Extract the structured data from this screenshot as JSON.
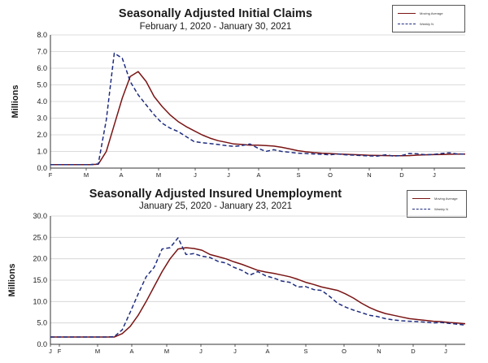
{
  "chart_data": [
    {
      "type": "line",
      "title": "Seasonally Adjusted Initial Claims",
      "subtitle": "February 1, 2020 - January 30, 2021",
      "xlabel": "",
      "ylabel": "Millions",
      "ylim": [
        0,
        8
      ],
      "yticks": [
        "0.0",
        "1.0",
        "2.0",
        "3.0",
        "4.0",
        "5.0",
        "6.0",
        "7.0",
        "8.0"
      ],
      "grid": "horizontal",
      "legend_position": "top-right",
      "x_tick_labels": [
        "F",
        "M",
        "A",
        "M",
        "J",
        "J",
        "A",
        "S",
        "O",
        "N",
        "D",
        "J"
      ],
      "x": [
        "2020-02-01",
        "2020-02-08",
        "2020-02-15",
        "2020-02-22",
        "2020-02-29",
        "2020-03-07",
        "2020-03-14",
        "2020-03-21",
        "2020-03-28",
        "2020-04-04",
        "2020-04-11",
        "2020-04-18",
        "2020-04-25",
        "2020-05-02",
        "2020-05-09",
        "2020-05-16",
        "2020-05-23",
        "2020-05-30",
        "2020-06-06",
        "2020-06-13",
        "2020-06-20",
        "2020-06-27",
        "2020-07-04",
        "2020-07-11",
        "2020-07-18",
        "2020-07-25",
        "2020-08-01",
        "2020-08-08",
        "2020-08-15",
        "2020-08-22",
        "2020-08-29",
        "2020-09-05",
        "2020-09-12",
        "2020-09-19",
        "2020-09-26",
        "2020-10-03",
        "2020-10-10",
        "2020-10-17",
        "2020-10-24",
        "2020-10-31",
        "2020-11-07",
        "2020-11-14",
        "2020-11-21",
        "2020-11-28",
        "2020-12-05",
        "2020-12-12",
        "2020-12-19",
        "2020-12-26",
        "2021-01-02",
        "2021-01-09",
        "2021-01-16",
        "2021-01-23",
        "2021-01-30"
      ],
      "series": [
        {
          "name": "Moving Average",
          "color": "#7a1414",
          "style": "solid",
          "values": [
            0.21,
            0.21,
            0.21,
            0.21,
            0.21,
            0.21,
            0.23,
            1.0,
            2.6,
            4.2,
            5.5,
            5.8,
            5.2,
            4.3,
            3.7,
            3.2,
            2.8,
            2.5,
            2.25,
            2.0,
            1.8,
            1.65,
            1.55,
            1.45,
            1.42,
            1.38,
            1.38,
            1.35,
            1.32,
            1.25,
            1.15,
            1.05,
            0.98,
            0.93,
            0.9,
            0.88,
            0.85,
            0.83,
            0.81,
            0.79,
            0.77,
            0.76,
            0.75,
            0.74,
            0.74,
            0.75,
            0.78,
            0.8,
            0.81,
            0.82,
            0.83,
            0.84,
            0.84
          ]
        },
        {
          "name": "Weekly N",
          "color": "#1f2d80",
          "style": "dashed",
          "values": [
            0.21,
            0.21,
            0.21,
            0.21,
            0.21,
            0.21,
            0.25,
            2.9,
            6.9,
            6.6,
            5.2,
            4.4,
            3.8,
            3.2,
            2.7,
            2.4,
            2.2,
            1.9,
            1.6,
            1.52,
            1.48,
            1.42,
            1.35,
            1.3,
            1.35,
            1.45,
            1.2,
            1.0,
            1.1,
            1.0,
            0.95,
            0.9,
            0.88,
            0.85,
            0.83,
            0.8,
            0.85,
            0.8,
            0.78,
            0.75,
            0.73,
            0.72,
            0.8,
            0.72,
            0.75,
            0.88,
            0.86,
            0.8,
            0.82,
            0.88,
            0.92,
            0.85,
            0.84
          ]
        }
      ]
    },
    {
      "type": "line",
      "title": "Seasonally Adjusted Insured Unemployment",
      "subtitle": "January 25, 2020 - January 23, 2021",
      "xlabel": "",
      "ylabel": "Millions",
      "ylim": [
        0,
        30
      ],
      "yticks": [
        "0.0",
        "5.0",
        "10.0",
        "15.0",
        "20.0",
        "25.0",
        "30.0"
      ],
      "grid": "horizontal",
      "legend_position": "top-right",
      "x_tick_labels": [
        "J",
        "F",
        "M",
        "A",
        "M",
        "J",
        "J",
        "A",
        "S",
        "O",
        "N",
        "D",
        "J"
      ],
      "x": [
        "2020-01-25",
        "2020-02-01",
        "2020-02-08",
        "2020-02-15",
        "2020-02-22",
        "2020-02-29",
        "2020-03-07",
        "2020-03-14",
        "2020-03-21",
        "2020-03-28",
        "2020-04-04",
        "2020-04-11",
        "2020-04-18",
        "2020-04-25",
        "2020-05-02",
        "2020-05-09",
        "2020-05-16",
        "2020-05-23",
        "2020-05-30",
        "2020-06-06",
        "2020-06-13",
        "2020-06-20",
        "2020-06-27",
        "2020-07-04",
        "2020-07-11",
        "2020-07-18",
        "2020-07-25",
        "2020-08-01",
        "2020-08-08",
        "2020-08-15",
        "2020-08-22",
        "2020-08-29",
        "2020-09-05",
        "2020-09-12",
        "2020-09-19",
        "2020-09-26",
        "2020-10-03",
        "2020-10-10",
        "2020-10-17",
        "2020-10-24",
        "2020-10-31",
        "2020-11-07",
        "2020-11-14",
        "2020-11-21",
        "2020-11-28",
        "2020-12-05",
        "2020-12-12",
        "2020-12-19",
        "2020-12-26",
        "2021-01-02",
        "2021-01-09",
        "2021-01-16",
        "2021-01-23"
      ],
      "series": [
        {
          "name": "Moving Average",
          "color": "#7a1414",
          "style": "solid",
          "values": [
            1.7,
            1.7,
            1.7,
            1.7,
            1.7,
            1.7,
            1.7,
            1.7,
            1.7,
            2.5,
            4.2,
            6.8,
            10.0,
            13.5,
            17.0,
            20.0,
            22.3,
            22.6,
            22.4,
            22.0,
            21.0,
            20.5,
            20.0,
            19.3,
            18.7,
            18.0,
            17.3,
            16.9,
            16.6,
            16.2,
            15.8,
            15.2,
            14.5,
            14.0,
            13.4,
            13.0,
            12.6,
            11.8,
            10.8,
            9.6,
            8.6,
            7.8,
            7.2,
            6.8,
            6.4,
            6.0,
            5.8,
            5.6,
            5.4,
            5.3,
            5.1,
            5.0,
            4.8
          ]
        },
        {
          "name": "Weekly N",
          "color": "#1f2d80",
          "style": "dashed",
          "values": [
            1.7,
            1.7,
            1.7,
            1.7,
            1.7,
            1.7,
            1.7,
            1.7,
            1.8,
            3.4,
            7.5,
            11.8,
            15.8,
            18.0,
            22.3,
            22.6,
            24.9,
            21.0,
            21.2,
            20.6,
            20.3,
            19.4,
            19.0,
            18.0,
            17.3,
            16.2,
            17.0,
            16.0,
            15.5,
            14.8,
            14.5,
            13.4,
            13.5,
            12.8,
            12.6,
            11.2,
            9.6,
            8.7,
            8.0,
            7.4,
            6.8,
            6.5,
            6.0,
            5.7,
            5.5,
            5.4,
            5.3,
            5.2,
            5.0,
            5.1,
            4.9,
            4.7,
            4.5
          ]
        }
      ]
    }
  ]
}
